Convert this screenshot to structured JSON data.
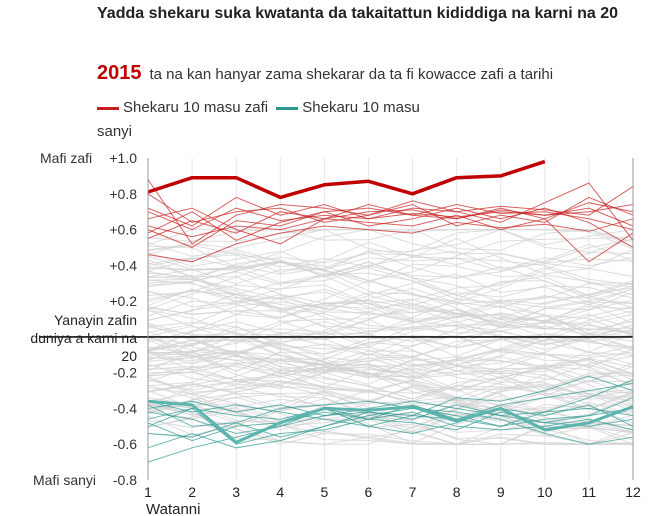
{
  "header": {
    "title": "Yadda shekaru suka kwatanta da takaitattun kididdiga na karni na 20",
    "year": "2015",
    "subtitle_text": "ta na kan hanyar zama shekarar da ta fi kowacce zafi a tarihi"
  },
  "legend": {
    "warm_label": "Shekaru 10 masu zafi",
    "cold_label": "Shekaru 10 masu sanyi",
    "warm_color": "#c81e1e",
    "cold_color": "#2b9890"
  },
  "axis": {
    "ylabel_top": "Mafi zafi",
    "ylabel_bottom": "Mafi sanyi",
    "baseline_label": "Yanayin zafin duniya a karni na 20",
    "xlabel": "Watanni"
  },
  "chart_data": {
    "type": "line",
    "x": [
      1,
      2,
      3,
      4,
      5,
      6,
      7,
      8,
      9,
      10,
      11,
      12
    ],
    "xlabel": "Watanni",
    "ylim": [
      -0.8,
      1.0
    ],
    "yticks": [
      1.0,
      0.8,
      0.6,
      0.4,
      0.2,
      0.0,
      -0.2,
      -0.4,
      -0.6,
      -0.8
    ],
    "ytick_labels": [
      "+1.0",
      "+0.8",
      "+0.6",
      "+0.4",
      "+0.2",
      "",
      "-0.2",
      "-0.4",
      "-0.6",
      "-0.8"
    ],
    "highlight": {
      "name": "2015",
      "color": "#c00000",
      "values": [
        0.81,
        0.89,
        0.89,
        0.78,
        0.85,
        0.87,
        0.8,
        0.89,
        0.9,
        0.98
      ]
    },
    "series_mean": {
      "color": "#5bb5ae",
      "values": [
        -0.36,
        -0.38,
        -0.59,
        -0.48,
        -0.4,
        -0.41,
        -0.39,
        -0.47,
        -0.4,
        -0.52,
        -0.48,
        -0.39
      ]
    },
    "warm_series": [
      [
        0.7,
        0.6,
        0.72,
        0.65,
        0.68,
        0.66,
        0.69,
        0.67,
        0.7,
        0.68,
        0.72,
        0.62
      ],
      [
        0.6,
        0.5,
        0.65,
        0.62,
        0.7,
        0.72,
        0.68,
        0.74,
        0.69,
        0.7,
        0.66,
        0.6
      ],
      [
        0.55,
        0.65,
        0.58,
        0.7,
        0.66,
        0.64,
        0.62,
        0.68,
        0.6,
        0.66,
        0.75,
        0.7
      ],
      [
        0.88,
        0.52,
        0.68,
        0.74,
        0.72,
        0.68,
        0.76,
        0.7,
        0.73,
        0.71,
        0.68,
        0.84
      ],
      [
        0.46,
        0.42,
        0.52,
        0.58,
        0.62,
        0.6,
        0.58,
        0.64,
        0.61,
        0.63,
        0.59,
        0.66
      ],
      [
        0.66,
        0.72,
        0.6,
        0.52,
        0.66,
        0.7,
        0.71,
        0.66,
        0.72,
        0.66,
        0.42,
        0.58
      ],
      [
        0.72,
        0.62,
        0.78,
        0.68,
        0.74,
        0.66,
        0.72,
        0.7,
        0.64,
        0.75,
        0.86,
        0.54
      ],
      [
        0.62,
        0.56,
        0.62,
        0.6,
        0.66,
        0.74,
        0.68,
        0.66,
        0.71,
        0.68,
        0.7,
        0.74
      ],
      [
        0.58,
        0.7,
        0.54,
        0.64,
        0.7,
        0.62,
        0.66,
        0.72,
        0.66,
        0.72,
        0.64,
        0.5
      ],
      [
        0.8,
        0.64,
        0.7,
        0.72,
        0.64,
        0.68,
        0.74,
        0.62,
        0.68,
        0.64,
        0.78,
        0.68
      ]
    ],
    "cold_series": [
      [
        -0.42,
        -0.46,
        -0.54,
        -0.5,
        -0.44,
        -0.42,
        -0.46,
        -0.38,
        -0.44,
        -0.42,
        -0.4,
        -0.44
      ],
      [
        -0.38,
        -0.5,
        -0.48,
        -0.56,
        -0.5,
        -0.44,
        -0.4,
        -0.44,
        -0.5,
        -0.46,
        -0.44,
        -0.4
      ],
      [
        -0.7,
        -0.62,
        -0.56,
        -0.5,
        -0.4,
        -0.46,
        -0.38,
        -0.46,
        -0.38,
        -0.34,
        -0.3,
        -0.26
      ],
      [
        -0.5,
        -0.4,
        -0.44,
        -0.46,
        -0.4,
        -0.5,
        -0.44,
        -0.34,
        -0.36,
        -0.3,
        -0.22,
        -0.3
      ],
      [
        -0.46,
        -0.4,
        -0.6,
        -0.54,
        -0.52,
        -0.46,
        -0.48,
        -0.52,
        -0.42,
        -0.48,
        -0.5,
        -0.46
      ],
      [
        -0.36,
        -0.42,
        -0.38,
        -0.42,
        -0.46,
        -0.5,
        -0.54,
        -0.48,
        -0.4,
        -0.44,
        -0.38,
        -0.5
      ],
      [
        -0.54,
        -0.56,
        -0.48,
        -0.4,
        -0.38,
        -0.36,
        -0.4,
        -0.42,
        -0.46,
        -0.54,
        -0.6,
        -0.56
      ],
      [
        -0.4,
        -0.36,
        -0.42,
        -0.38,
        -0.44,
        -0.4,
        -0.36,
        -0.4,
        -0.44,
        -0.48,
        -0.44,
        -0.34
      ],
      [
        -0.62,
        -0.54,
        -0.62,
        -0.58,
        -0.5,
        -0.42,
        -0.44,
        -0.46,
        -0.5,
        -0.42,
        -0.34,
        -0.24
      ],
      [
        -0.48,
        -0.58,
        -0.5,
        -0.48,
        -0.42,
        -0.46,
        -0.42,
        -0.5,
        -0.52,
        -0.5,
        -0.46,
        -0.52
      ]
    ]
  }
}
